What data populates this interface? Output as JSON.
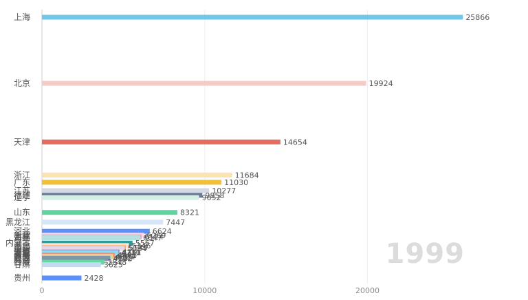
{
  "chart_data": {
    "type": "bar",
    "orientation": "horizontal",
    "year_label": "1999",
    "categories": [
      "上海",
      "北京",
      "天津",
      "浙江",
      "广东",
      "江苏",
      "福建",
      "辽宁",
      "山东",
      "黑龙江",
      "河北",
      "新疆",
      "吉林",
      "海南",
      "内蒙古",
      "湖北",
      "山西",
      "重庆",
      "湖南",
      "河南",
      "宁夏",
      "云南",
      "青海",
      "四川",
      "安徽",
      "江西",
      "陕西",
      "西藏",
      "甘肃",
      "贵州"
    ],
    "values": [
      25866,
      19924,
      14654,
      11684,
      11030,
      10277,
      9858,
      9652,
      8321,
      7447,
      6624,
      6269,
      6124,
      6047,
      5567,
      5346,
      5149,
      5084,
      4761,
      4710,
      4711,
      4486,
      4471,
      4381,
      4327,
      4222,
      4192,
      3848,
      3625,
      2428
    ],
    "colors": [
      "#73c6e8",
      "#f4cbc7",
      "#e56d5f",
      "#f9e4b0",
      "#f2c037",
      "#d3dae3",
      "#6c7a96",
      "#d2f0e4",
      "#5fd4a0",
      "#d6e6f9",
      "#5b8ff9",
      "#fbdbe8",
      "#f59ec0",
      "#b5e0e0",
      "#2a9c9c",
      "#fde4d0",
      "#ff9f4a",
      "#e3d5eb",
      "#9a68bd",
      "#c3e9f2",
      "#8fd8f0",
      "#f6c2bb",
      "#ee8a7e",
      "#fad25a",
      "#e6d29a",
      "#b2c2cf",
      "#7f96a8",
      "#62d8a3",
      "#c5d9f2",
      "#5b8ff9"
    ],
    "xlim": [
      0,
      27500
    ],
    "xticks": [
      0,
      10000,
      20000
    ],
    "xtick_labels": [
      "0",
      "10000",
      "20000"
    ],
    "grid": true
  }
}
